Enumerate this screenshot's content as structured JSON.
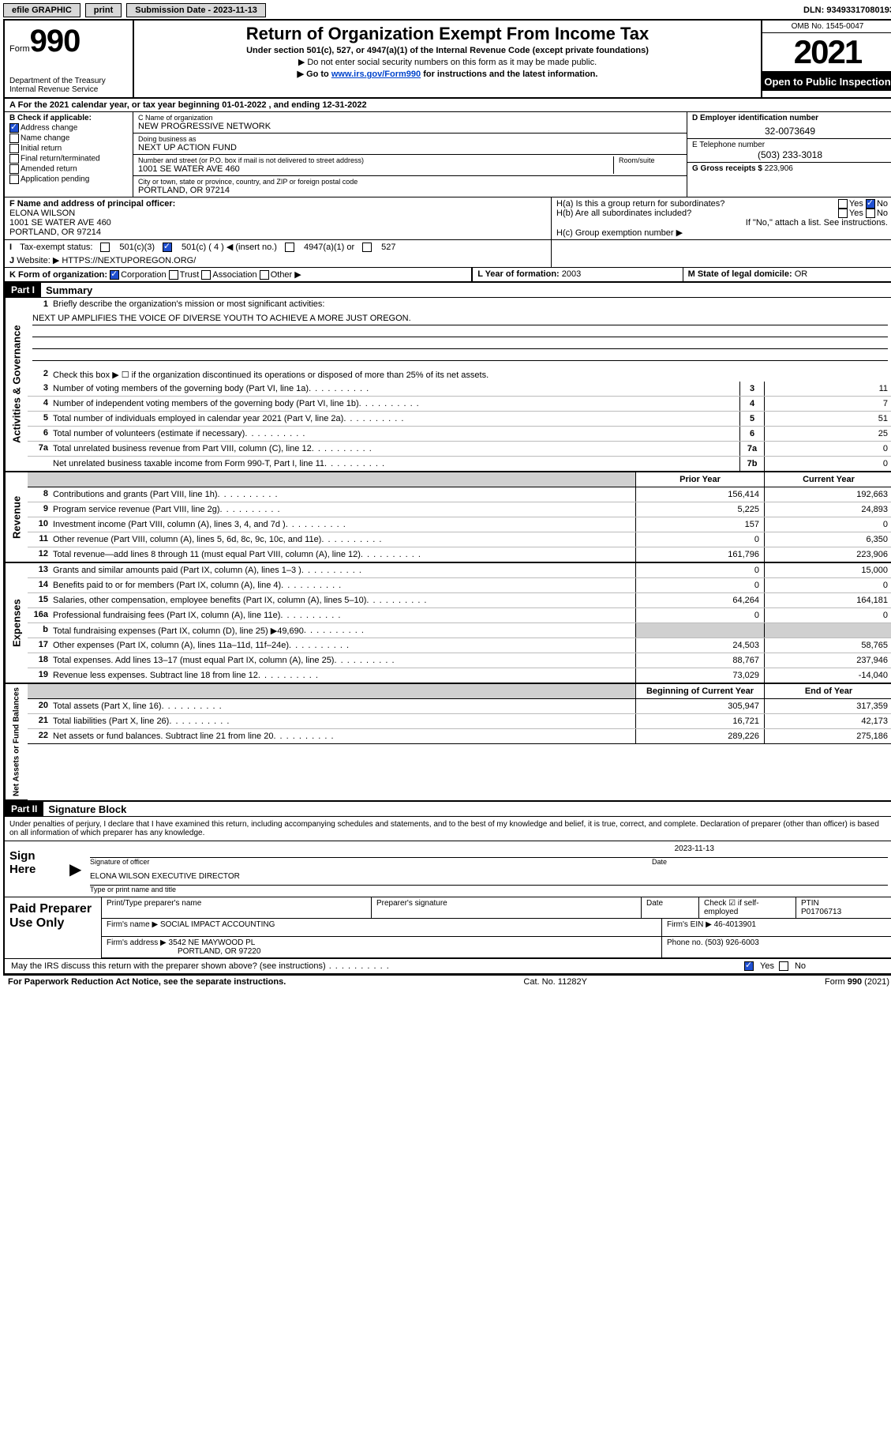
{
  "topbar": {
    "efile": "efile GRAPHIC",
    "print": "print",
    "sub_label": "Submission Date - 2023-11-13",
    "dln": "DLN: 93493317080193"
  },
  "header": {
    "form_word": "Form",
    "form_no": "990",
    "dept": "Department of the Treasury",
    "irs": "Internal Revenue Service",
    "title": "Return of Organization Exempt From Income Tax",
    "sub1": "Under section 501(c), 527, or 4947(a)(1) of the Internal Revenue Code (except private foundations)",
    "sub2": "▶ Do not enter social security numbers on this form as it may be made public.",
    "sub3_pre": "▶ Go to ",
    "sub3_link": "www.irs.gov/Form990",
    "sub3_post": " for instructions and the latest information.",
    "omb": "OMB No. 1545-0047",
    "year": "2021",
    "open": "Open to Public Inspection"
  },
  "line_a": "For the 2021 calendar year, or tax year beginning 01-01-2022    , and ending 12-31-2022",
  "box_b": {
    "title": "B Check if applicable:",
    "addr_change": "Address change",
    "name_change": "Name change",
    "initial": "Initial return",
    "final": "Final return/terminated",
    "amended": "Amended return",
    "app": "Application pending"
  },
  "box_c": {
    "name_lbl": "C Name of organization",
    "name": "NEW PROGRESSIVE NETWORK",
    "dba_lbl": "Doing business as",
    "dba": "NEXT UP ACTION FUND",
    "addr_lbl": "Number and street (or P.O. box if mail is not delivered to street address)",
    "room_lbl": "Room/suite",
    "addr": "1001 SE WATER AVE 460",
    "city_lbl": "City or town, state or province, country, and ZIP or foreign postal code",
    "city": "PORTLAND, OR  97214"
  },
  "box_d": {
    "lbl": "D Employer identification number",
    "val": "32-0073649"
  },
  "box_e": {
    "lbl": "E Telephone number",
    "val": "(503) 233-3018"
  },
  "box_g": {
    "lbl": "G Gross receipts $",
    "val": "223,906"
  },
  "box_f": {
    "lbl": "F Name and address of principal officer:",
    "name": "ELONA WILSON",
    "addr1": "1001 SE WATER AVE 460",
    "addr2": "PORTLAND, OR  97214"
  },
  "box_h": {
    "a": "H(a)  Is this a group return for subordinates?",
    "a_yes": "Yes",
    "a_no": "No",
    "b": "H(b)  Are all subordinates included?",
    "b_yes": "Yes",
    "b_no": "No",
    "b_note": "If \"No,\" attach a list. See instructions.",
    "c": "H(c)  Group exemption number ▶"
  },
  "line_i": {
    "lbl": "Tax-exempt status:",
    "o1": "501(c)(3)",
    "o2": "501(c) ( 4 ) ◀ (insert no.)",
    "o3": "4947(a)(1) or",
    "o4": "527"
  },
  "line_j": {
    "lbl": "Website: ▶",
    "val": "HTTPS://NEXTUPOREGON.ORG/"
  },
  "line_k": {
    "lbl": "K Form of organization:",
    "o1": "Corporation",
    "o2": "Trust",
    "o3": "Association",
    "o4": "Other ▶"
  },
  "line_l": {
    "lbl": "L Year of formation:",
    "val": "2003"
  },
  "line_m": {
    "lbl": "M State of legal domicile:",
    "val": "OR"
  },
  "part1": {
    "bar": "Part I",
    "title": "Summary"
  },
  "mission": {
    "lbl": "Briefly describe the organization's mission or most significant activities:",
    "text": "NEXT UP AMPLIFIES THE VOICE OF DIVERSE YOUTH TO ACHIEVE A MORE JUST OREGON."
  },
  "line2": "Check this box ▶ ☐  if the organization discontinued its operations or disposed of more than 25% of its net assets.",
  "gov_lines": [
    {
      "n": "3",
      "d": "Number of voting members of the governing body (Part VI, line 1a)",
      "b": "3",
      "v": "11"
    },
    {
      "n": "4",
      "d": "Number of independent voting members of the governing body (Part VI, line 1b)",
      "b": "4",
      "v": "7"
    },
    {
      "n": "5",
      "d": "Total number of individuals employed in calendar year 2021 (Part V, line 2a)",
      "b": "5",
      "v": "51"
    },
    {
      "n": "6",
      "d": "Total number of volunteers (estimate if necessary)",
      "b": "6",
      "v": "25"
    },
    {
      "n": "7a",
      "d": "Total unrelated business revenue from Part VIII, column (C), line 12",
      "b": "7a",
      "v": "0"
    },
    {
      "n": "",
      "d": "Net unrelated business taxable income from Form 990-T, Part I, line 11",
      "b": "7b",
      "v": "0"
    }
  ],
  "rev_hdr": {
    "prior": "Prior Year",
    "cur": "Current Year"
  },
  "rev_lines": [
    {
      "n": "8",
      "d": "Contributions and grants (Part VIII, line 1h)",
      "p": "156,414",
      "c": "192,663"
    },
    {
      "n": "9",
      "d": "Program service revenue (Part VIII, line 2g)",
      "p": "5,225",
      "c": "24,893"
    },
    {
      "n": "10",
      "d": "Investment income (Part VIII, column (A), lines 3, 4, and 7d )",
      "p": "157",
      "c": "0"
    },
    {
      "n": "11",
      "d": "Other revenue (Part VIII, column (A), lines 5, 6d, 8c, 9c, 10c, and 11e)",
      "p": "0",
      "c": "6,350"
    },
    {
      "n": "12",
      "d": "Total revenue—add lines 8 through 11 (must equal Part VIII, column (A), line 12)",
      "p": "161,796",
      "c": "223,906"
    }
  ],
  "exp_lines": [
    {
      "n": "13",
      "d": "Grants and similar amounts paid (Part IX, column (A), lines 1–3 )",
      "p": "0",
      "c": "15,000"
    },
    {
      "n": "14",
      "d": "Benefits paid to or for members (Part IX, column (A), line 4)",
      "p": "0",
      "c": "0"
    },
    {
      "n": "15",
      "d": "Salaries, other compensation, employee benefits (Part IX, column (A), lines 5–10)",
      "p": "64,264",
      "c": "164,181"
    },
    {
      "n": "16a",
      "d": "Professional fundraising fees (Part IX, column (A), line 11e)",
      "p": "0",
      "c": "0"
    },
    {
      "n": "b",
      "d": "Total fundraising expenses (Part IX, column (D), line 25) ▶49,690",
      "p": "",
      "c": "",
      "shade": true
    },
    {
      "n": "17",
      "d": "Other expenses (Part IX, column (A), lines 11a–11d, 11f–24e)",
      "p": "24,503",
      "c": "58,765"
    },
    {
      "n": "18",
      "d": "Total expenses. Add lines 13–17 (must equal Part IX, column (A), line 25)",
      "p": "88,767",
      "c": "237,946"
    },
    {
      "n": "19",
      "d": "Revenue less expenses. Subtract line 18 from line 12",
      "p": "73,029",
      "c": "-14,040"
    }
  ],
  "na_hdr": {
    "begin": "Beginning of Current Year",
    "end": "End of Year"
  },
  "na_lines": [
    {
      "n": "20",
      "d": "Total assets (Part X, line 16)",
      "p": "305,947",
      "c": "317,359"
    },
    {
      "n": "21",
      "d": "Total liabilities (Part X, line 26)",
      "p": "16,721",
      "c": "42,173"
    },
    {
      "n": "22",
      "d": "Net assets or fund balances. Subtract line 21 from line 20",
      "p": "289,226",
      "c": "275,186"
    }
  ],
  "side_labels": {
    "gov": "Activities & Governance",
    "rev": "Revenue",
    "exp": "Expenses",
    "na": "Net Assets or Fund Balances"
  },
  "part2": {
    "bar": "Part II",
    "title": "Signature Block"
  },
  "sig": {
    "decl": "Under penalties of perjury, I declare that I have examined this return, including accompanying schedules and statements, and to the best of my knowledge and belief, it is true, correct, and complete. Declaration of preparer (other than officer) is based on all information of which preparer has any knowledge.",
    "sign_here": "Sign Here",
    "sig_lbl": "Signature of officer",
    "date_lbl": "Date",
    "date_val": "2023-11-13",
    "name": "ELONA WILSON  EXECUTIVE DIRECTOR",
    "name_lbl": "Type or print name and title"
  },
  "prep": {
    "title": "Paid Preparer Use Only",
    "h1": "Print/Type preparer's name",
    "h2": "Preparer's signature",
    "h3": "Date",
    "h4": "Check ☑ if self-employed",
    "h5_lbl": "PTIN",
    "h5": "P01706713",
    "firm_lbl": "Firm's name    ▶",
    "firm": "SOCIAL IMPACT ACCOUNTING",
    "ein_lbl": "Firm's EIN ▶",
    "ein": "46-4013901",
    "addr_lbl": "Firm's address ▶",
    "addr1": "3542 NE MAYWOOD PL",
    "addr2": "PORTLAND, OR  97220",
    "phone_lbl": "Phone no.",
    "phone": "(503) 926-6003"
  },
  "may_discuss": "May the IRS discuss this return with the preparer shown above? (see instructions)",
  "may_yes": "Yes",
  "may_no": "No",
  "footer": {
    "left": "For Paperwork Reduction Act Notice, see the separate instructions.",
    "mid": "Cat. No. 11282Y",
    "right": "Form 990 (2021)"
  }
}
